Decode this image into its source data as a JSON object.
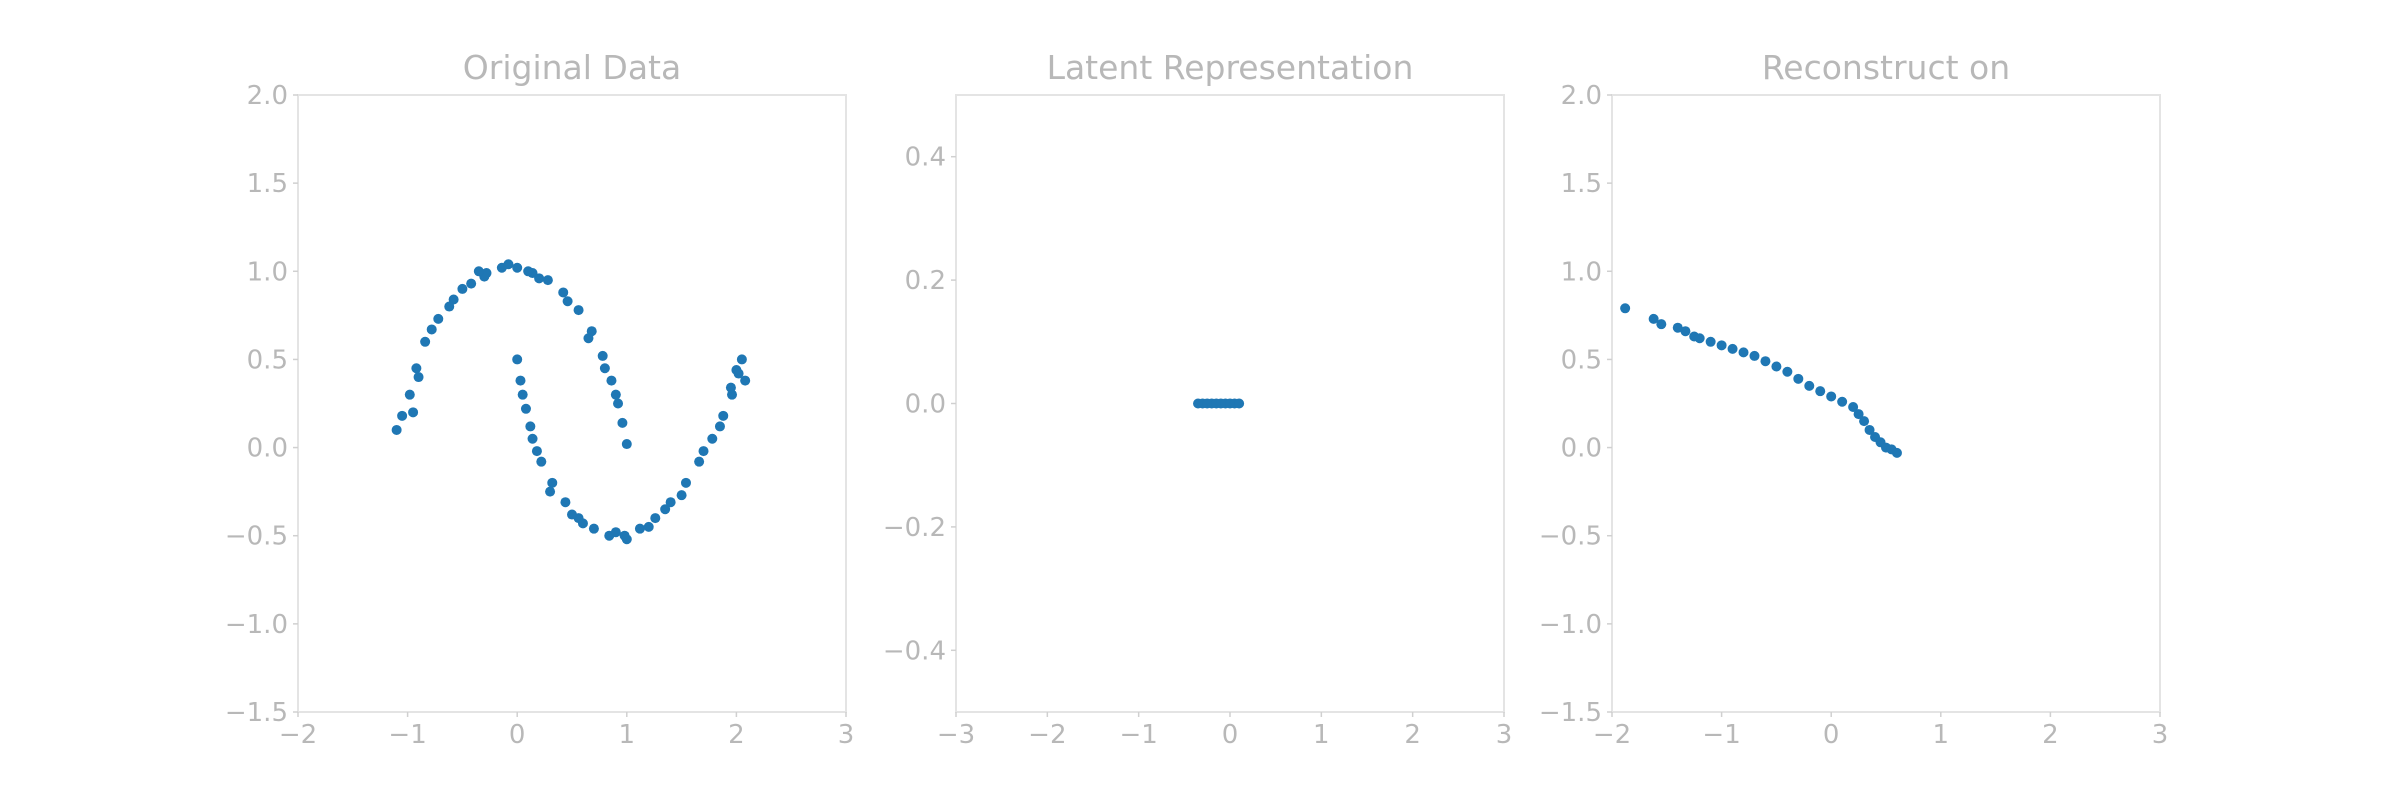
{
  "colors": {
    "marker": "#1f77b4",
    "frame": "#e4e4e4",
    "text": "#b8b8b8",
    "background": "#ffffff"
  },
  "chart_data": [
    {
      "type": "scatter",
      "title": "Original Data",
      "xlabel": "",
      "ylabel": "",
      "xlim": [
        -2,
        3
      ],
      "ylim": [
        -1.5,
        2.0
      ],
      "xticks": [
        "−2",
        "−1",
        "0",
        "1",
        "2",
        "3"
      ],
      "yticks": [
        "−1.5",
        "−1.0",
        "−0.5",
        "0.0",
        "0.5",
        "1.0",
        "1.5",
        "2.0"
      ],
      "grid": false,
      "series": [
        {
          "color": "#1f77b4",
          "x": [
            -1.1,
            -1.05,
            -0.98,
            -0.92,
            -0.84,
            -0.72,
            -0.58,
            -0.42,
            -0.28,
            -0.14,
            0.0,
            0.14,
            0.28,
            0.42,
            0.56,
            0.68,
            0.78,
            0.86,
            0.92,
            0.96,
            1.0,
            -0.9,
            -0.62,
            -0.3,
            0.1,
            0.46,
            0.8,
            -0.95,
            -0.5,
            0.2,
            0.65,
            -0.78,
            -0.08,
            0.9,
            -0.35,
            0.0,
            0.03,
            0.08,
            0.14,
            0.22,
            0.32,
            0.44,
            0.56,
            0.7,
            0.84,
            0.98,
            1.12,
            1.26,
            1.4,
            1.54,
            1.66,
            1.78,
            1.88,
            1.96,
            2.02,
            2.05,
            2.08,
            0.05,
            0.3,
            0.6,
            1.0,
            1.35,
            1.7,
            1.95,
            0.12,
            0.5,
            0.9,
            1.5,
            2.0,
            0.18,
            1.2,
            1.85
          ],
          "y": [
            0.1,
            0.18,
            0.3,
            0.45,
            0.6,
            0.73,
            0.84,
            0.93,
            0.99,
            1.02,
            1.02,
            0.99,
            0.95,
            0.88,
            0.78,
            0.66,
            0.52,
            0.38,
            0.25,
            0.14,
            0.02,
            0.4,
            0.8,
            0.97,
            1.0,
            0.83,
            0.45,
            0.2,
            0.9,
            0.96,
            0.62,
            0.67,
            1.04,
            0.3,
            1.0,
            0.5,
            0.38,
            0.22,
            0.05,
            -0.08,
            -0.2,
            -0.31,
            -0.4,
            -0.46,
            -0.5,
            -0.5,
            -0.46,
            -0.4,
            -0.31,
            -0.2,
            -0.08,
            0.05,
            0.18,
            0.3,
            0.42,
            0.5,
            0.38,
            0.3,
            -0.25,
            -0.43,
            -0.52,
            -0.35,
            -0.02,
            0.34,
            0.12,
            -0.38,
            -0.48,
            -0.27,
            0.44,
            -0.02,
            -0.45,
            0.12
          ]
        }
      ]
    },
    {
      "type": "scatter",
      "title": "Latent Representation",
      "xlabel": "",
      "ylabel": "",
      "xlim": [
        -3,
        3
      ],
      "ylim": [
        -0.5,
        0.5
      ],
      "xticks": [
        "−3",
        "−2",
        "−1",
        "0",
        "1",
        "2",
        "3"
      ],
      "yticks": [
        "−0.4",
        "−0.2",
        "0.0",
        "0.2",
        "0.4"
      ],
      "grid": false,
      "series": [
        {
          "color": "#1f77b4",
          "x": [
            -0.35,
            -0.3,
            -0.25,
            -0.2,
            -0.15,
            -0.1,
            -0.05,
            0.0,
            0.05,
            0.1
          ],
          "y": [
            0,
            0,
            0,
            0,
            0,
            0,
            0,
            0,
            0,
            0
          ]
        }
      ]
    },
    {
      "type": "scatter",
      "title": "Reconstruct on",
      "xlabel": "",
      "ylabel": "",
      "xlim": [
        -2,
        3
      ],
      "ylim": [
        -1.5,
        2.0
      ],
      "xticks": [
        "−2",
        "−1",
        "0",
        "1",
        "2",
        "3"
      ],
      "yticks": [
        "−1.5",
        "−1.0",
        "−0.5",
        "0.0",
        "0.5",
        "1.0",
        "1.5",
        "2.0"
      ],
      "grid": false,
      "series": [
        {
          "color": "#1f77b4",
          "x": [
            -1.88,
            -1.62,
            -1.55,
            -1.4,
            -1.33,
            -1.25,
            -1.2,
            -1.1,
            -1.0,
            -0.9,
            -0.8,
            -0.7,
            -0.6,
            -0.5,
            -0.4,
            -0.3,
            -0.2,
            -0.1,
            0.0,
            0.1,
            0.2,
            0.25,
            0.3,
            0.35,
            0.4,
            0.45,
            0.5,
            0.55,
            0.6
          ],
          "y": [
            0.79,
            0.73,
            0.7,
            0.68,
            0.66,
            0.63,
            0.62,
            0.6,
            0.58,
            0.56,
            0.54,
            0.52,
            0.49,
            0.46,
            0.43,
            0.39,
            0.35,
            0.32,
            0.29,
            0.26,
            0.23,
            0.19,
            0.15,
            0.1,
            0.06,
            0.03,
            0.0,
            -0.01,
            -0.03
          ]
        }
      ]
    }
  ]
}
